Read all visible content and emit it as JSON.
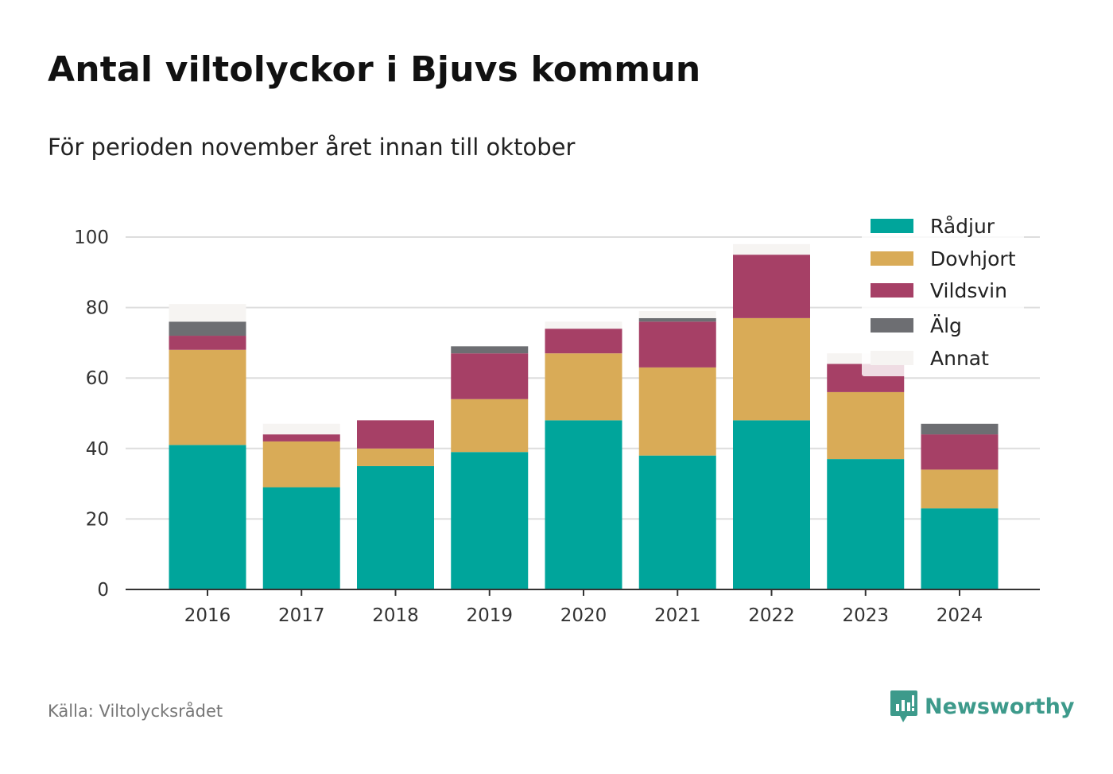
{
  "title": "Antal viltolyckor i Bjuvs kommun",
  "subtitle": "För perioden november året innan till oktober",
  "source": "Källa: Viltolycksrådet",
  "brand": {
    "name": "Newsworthy",
    "color": "#3d9a8b",
    "icon": "newsworthy-logo-icon"
  },
  "chart_data": {
    "type": "bar",
    "stacked": true,
    "categories": [
      "2016",
      "2017",
      "2018",
      "2019",
      "2020",
      "2021",
      "2022",
      "2023",
      "2024"
    ],
    "series": [
      {
        "name": "Rådjur",
        "color": "#00a59b",
        "values": [
          41,
          29,
          35,
          39,
          48,
          38,
          48,
          37,
          23
        ]
      },
      {
        "name": "Dovhjort",
        "color": "#d9ab57",
        "values": [
          27,
          13,
          5,
          15,
          19,
          25,
          29,
          19,
          11
        ]
      },
      {
        "name": "Vildsvin",
        "color": "#a64066",
        "values": [
          4,
          2,
          8,
          13,
          7,
          13,
          18,
          8,
          10
        ]
      },
      {
        "name": "Älg",
        "color": "#6d6e72",
        "values": [
          4,
          0,
          0,
          2,
          0,
          1,
          0,
          0,
          3
        ]
      },
      {
        "name": "Annat",
        "color": "#f6f4f2",
        "values": [
          5,
          3,
          0,
          0,
          2,
          2,
          3,
          3,
          0
        ]
      }
    ],
    "y_ticks": [
      0,
      20,
      40,
      60,
      80,
      100
    ],
    "ylim": [
      0,
      100
    ],
    "grid": true,
    "legend_position": "top-right"
  }
}
